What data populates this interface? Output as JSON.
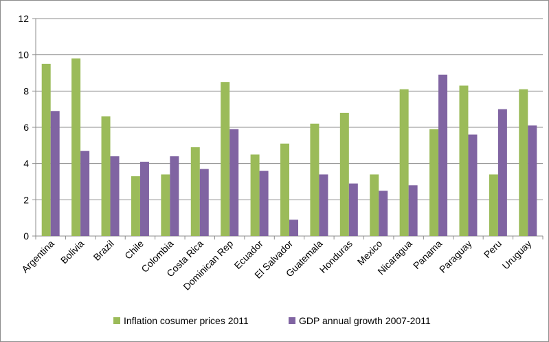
{
  "chart_data": {
    "type": "bar",
    "title": "",
    "xlabel": "",
    "ylabel": "",
    "ylim": [
      0,
      12
    ],
    "yticks": [
      0,
      2,
      4,
      6,
      8,
      10,
      12
    ],
    "grid": "horizontal",
    "legend_position": "bottom",
    "categories": [
      "Argentina",
      "Bolivia",
      "Brazil",
      "Chile",
      "Colombia",
      "Costa Rica",
      "Dominican Rep",
      "Ecuador",
      "El Salvador",
      "Guatemala",
      "Honduras",
      "Mexico",
      "Nicaragua",
      "Panama",
      "Paraguay",
      "Peru",
      "Uruguay"
    ],
    "series": [
      {
        "name": "Inflation cosumer prices 2011",
        "color": "#9bbb59",
        "values": [
          9.5,
          9.8,
          6.6,
          3.3,
          3.4,
          4.9,
          8.5,
          4.5,
          5.1,
          6.2,
          6.8,
          3.4,
          8.1,
          5.9,
          8.3,
          3.4,
          8.1
        ]
      },
      {
        "name": "GDP annual growth 2007-2011",
        "color": "#8064a2",
        "values": [
          6.9,
          4.7,
          4.4,
          4.1,
          4.4,
          3.7,
          5.9,
          3.6,
          0.9,
          3.4,
          2.9,
          2.5,
          2.8,
          8.9,
          5.6,
          7.0,
          6.1
        ]
      }
    ]
  }
}
